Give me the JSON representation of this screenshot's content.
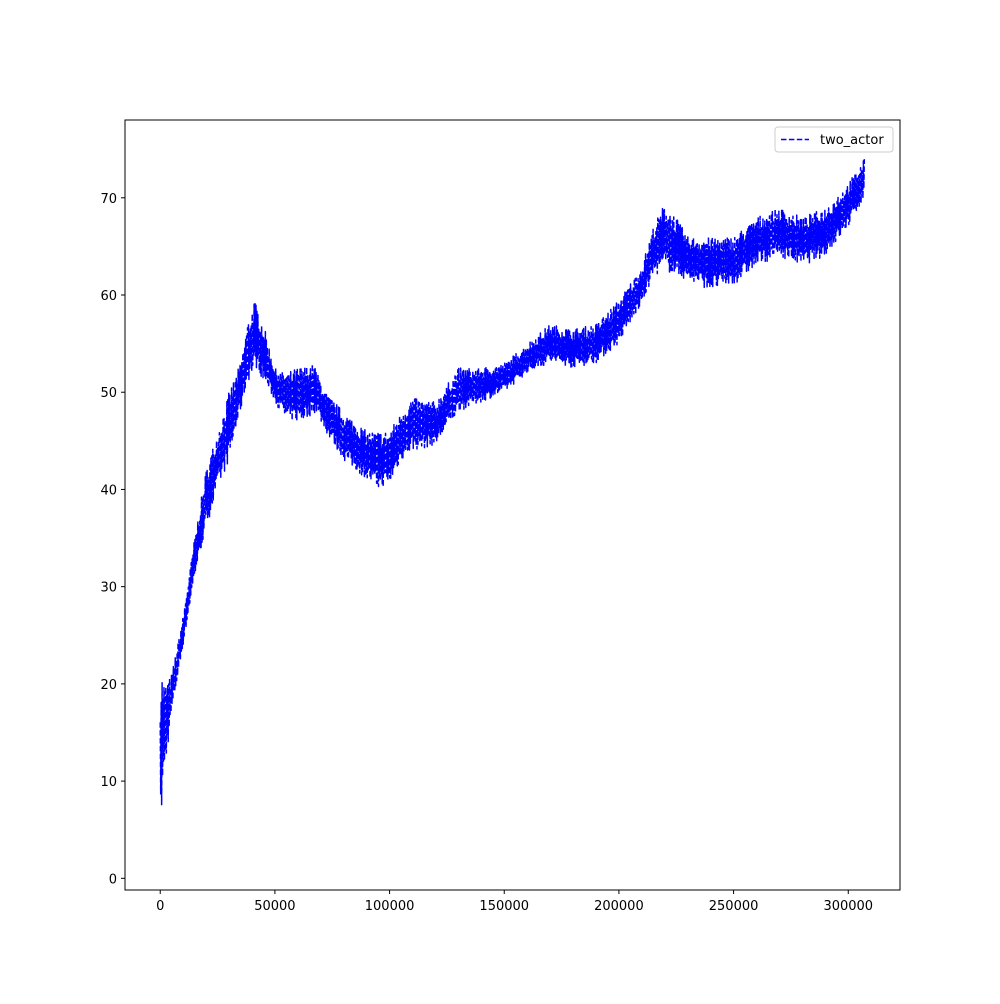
{
  "chart_data": {
    "type": "line",
    "title": "",
    "xlabel": "",
    "ylabel": "",
    "xlim": [
      -15360,
      322560
    ],
    "ylim": [
      -1.2,
      78
    ],
    "x_ticks": [
      0,
      50000,
      100000,
      150000,
      200000,
      250000,
      300000
    ],
    "x_tick_labels": [
      "0",
      "50000",
      "100000",
      "150000",
      "200000",
      "250000",
      "300000"
    ],
    "y_ticks": [
      0,
      10,
      20,
      30,
      40,
      50,
      60,
      70
    ],
    "y_tick_labels": [
      "0",
      "10",
      "20",
      "30",
      "40",
      "50",
      "60",
      "70"
    ],
    "grid": false,
    "legend_position": "top-right",
    "series": [
      {
        "name": "two_actor",
        "color": "#0000ff",
        "line_style": "dashed",
        "upper": [
          [
            0,
            22
          ],
          [
            2000,
            20
          ],
          [
            5000,
            21
          ],
          [
            10000,
            27
          ],
          [
            15000,
            35
          ],
          [
            20000,
            42
          ],
          [
            25000,
            46
          ],
          [
            30000,
            50
          ],
          [
            35000,
            53
          ],
          [
            38000,
            57
          ],
          [
            41000,
            59.5
          ],
          [
            45000,
            57
          ],
          [
            50000,
            52.5
          ],
          [
            55000,
            52
          ],
          [
            60000,
            52.5
          ],
          [
            67000,
            53
          ],
          [
            72000,
            50
          ],
          [
            80000,
            48
          ],
          [
            90000,
            46
          ],
          [
            95000,
            46
          ],
          [
            100000,
            46
          ],
          [
            105000,
            48
          ],
          [
            110000,
            49.5
          ],
          [
            120000,
            49
          ],
          [
            130000,
            52.5
          ],
          [
            140000,
            52.5
          ],
          [
            150000,
            53
          ],
          [
            160000,
            55
          ],
          [
            170000,
            57
          ],
          [
            180000,
            56.5
          ],
          [
            190000,
            57
          ],
          [
            200000,
            59.5
          ],
          [
            210000,
            63
          ],
          [
            215000,
            67
          ],
          [
            220000,
            69.5
          ],
          [
            225000,
            68
          ],
          [
            230000,
            66
          ],
          [
            240000,
            66
          ],
          [
            250000,
            66
          ],
          [
            260000,
            68
          ],
          [
            270000,
            69
          ],
          [
            280000,
            68
          ],
          [
            290000,
            69
          ],
          [
            300000,
            71.5
          ],
          [
            307000,
            74
          ]
        ],
        "lower": [
          [
            0,
            2.2
          ],
          [
            800,
            8
          ],
          [
            2000,
            11
          ],
          [
            5000,
            17
          ],
          [
            10000,
            24
          ],
          [
            15000,
            31
          ],
          [
            20000,
            36
          ],
          [
            25000,
            40
          ],
          [
            30000,
            43
          ],
          [
            35000,
            48
          ],
          [
            38000,
            51
          ],
          [
            42000,
            52.5
          ],
          [
            50000,
            49
          ],
          [
            55000,
            47
          ],
          [
            62000,
            47
          ],
          [
            68000,
            48
          ],
          [
            72000,
            46
          ],
          [
            80000,
            43
          ],
          [
            90000,
            41
          ],
          [
            95000,
            40
          ],
          [
            100000,
            40.5
          ],
          [
            105000,
            43
          ],
          [
            110000,
            44
          ],
          [
            120000,
            44.5
          ],
          [
            130000,
            48
          ],
          [
            140000,
            49
          ],
          [
            150000,
            50
          ],
          [
            160000,
            52
          ],
          [
            170000,
            53
          ],
          [
            180000,
            52.5
          ],
          [
            190000,
            53
          ],
          [
            200000,
            55
          ],
          [
            210000,
            59
          ],
          [
            215000,
            62
          ],
          [
            220000,
            62.5
          ],
          [
            225000,
            62
          ],
          [
            230000,
            61.5
          ],
          [
            240000,
            60.5
          ],
          [
            250000,
            61
          ],
          [
            260000,
            63
          ],
          [
            270000,
            64
          ],
          [
            280000,
            63
          ],
          [
            290000,
            64
          ],
          [
            300000,
            67
          ],
          [
            307000,
            70
          ]
        ]
      }
    ]
  }
}
